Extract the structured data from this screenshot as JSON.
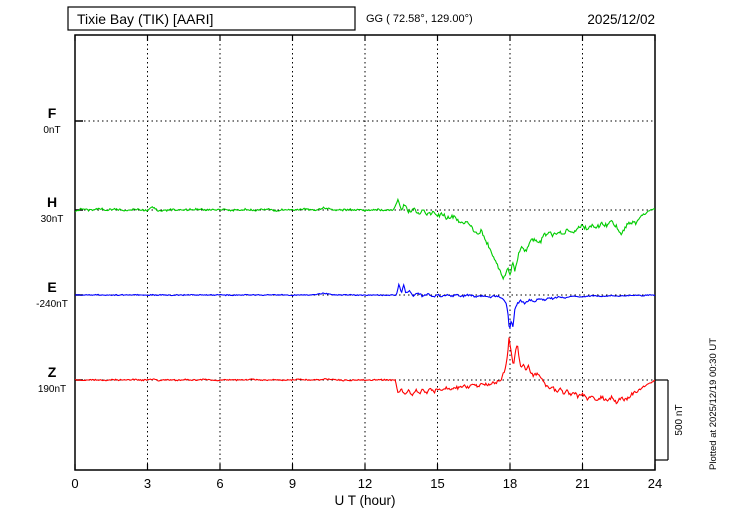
{
  "header": {
    "station_title": "Tixie Bay (TIK)  [AARI]",
    "coords": "GG ( 72.58°, 129.00°)",
    "date": "2025/12/02"
  },
  "footer": {
    "x_axis_label": "U T (hour)"
  },
  "scale_bar": {
    "label": "500 nT",
    "nT": 500
  },
  "watermark": "Plotted at 2025/12/19 00:30 UT",
  "chart_data": {
    "type": "line",
    "title": "Tixie Bay (TIK) [AARI] magnetogram 2025/12/02",
    "xlabel": "U T (hour)",
    "ylabel": "",
    "x_range": [
      0,
      24
    ],
    "x_ticks": [
      0,
      3,
      6,
      9,
      12,
      15,
      18,
      21,
      24
    ],
    "grid": "dotted",
    "legend_position": "left",
    "scale_bar_nT": 500,
    "sample_step": 0.04,
    "noise_seed": 12,
    "series": [
      {
        "id": "F",
        "label": "F",
        "base_label": "0nT",
        "base_value": 0,
        "color": "#FFA500",
        "noise_nT": 0,
        "storm_factor": 1,
        "storm_window": [
          0,
          0
        ],
        "points": []
      },
      {
        "id": "H",
        "label": "H",
        "base_label": "30nT",
        "base_value": 30,
        "color": "#00CC00",
        "noise_nT": 6,
        "storm_factor": 2.0,
        "storm_window": [
          13.3,
          23.2
        ],
        "points": [
          [
            0,
            22
          ],
          [
            0.3,
            38
          ],
          [
            0.6,
            28
          ],
          [
            1,
            42
          ],
          [
            1.3,
            30
          ],
          [
            1.6,
            36
          ],
          [
            2,
            29
          ],
          [
            2.5,
            35
          ],
          [
            3,
            27
          ],
          [
            3.2,
            45
          ],
          [
            3.5,
            23
          ],
          [
            4,
            32
          ],
          [
            4.5,
            29
          ],
          [
            5,
            36
          ],
          [
            5.5,
            30
          ],
          [
            6,
            33
          ],
          [
            6.5,
            28
          ],
          [
            7,
            34
          ],
          [
            7.5,
            29
          ],
          [
            8,
            36
          ],
          [
            8.3,
            26
          ],
          [
            8.6,
            34
          ],
          [
            9,
            30
          ],
          [
            9.5,
            35
          ],
          [
            10,
            29
          ],
          [
            10.3,
            45
          ],
          [
            10.6,
            34
          ],
          [
            11,
            29
          ],
          [
            11.5,
            33
          ],
          [
            12,
            28
          ],
          [
            12.5,
            33
          ],
          [
            13,
            28
          ],
          [
            13.2,
            34
          ],
          [
            13.35,
            95
          ],
          [
            13.5,
            24
          ],
          [
            13.65,
            70
          ],
          [
            13.8,
            14
          ],
          [
            14,
            36
          ],
          [
            14.2,
            6
          ],
          [
            14.4,
            26
          ],
          [
            14.6,
            0
          ],
          [
            14.8,
            16
          ],
          [
            15,
            -10
          ],
          [
            15.2,
            10
          ],
          [
            15.4,
            -24
          ],
          [
            15.6,
            -6
          ],
          [
            15.8,
            -30
          ],
          [
            16,
            -55
          ],
          [
            16.2,
            -36
          ],
          [
            16.4,
            -80
          ],
          [
            16.6,
            -120
          ],
          [
            16.8,
            -100
          ],
          [
            17,
            -160
          ],
          [
            17.2,
            -220
          ],
          [
            17.4,
            -285
          ],
          [
            17.6,
            -360
          ],
          [
            17.75,
            -400
          ],
          [
            17.9,
            -330
          ],
          [
            18,
            -380
          ],
          [
            18.1,
            -300
          ],
          [
            18.2,
            -345
          ],
          [
            18.35,
            -250
          ],
          [
            18.5,
            -190
          ],
          [
            18.65,
            -230
          ],
          [
            18.8,
            -170
          ],
          [
            19,
            -150
          ],
          [
            19.2,
            -185
          ],
          [
            19.4,
            -130
          ],
          [
            19.6,
            -110
          ],
          [
            19.8,
            -130
          ],
          [
            20,
            -100
          ],
          [
            20.2,
            -118
          ],
          [
            20.4,
            -90
          ],
          [
            20.6,
            -108
          ],
          [
            20.8,
            -80
          ],
          [
            21,
            -70
          ],
          [
            21.2,
            -92
          ],
          [
            21.4,
            -60
          ],
          [
            21.6,
            -78
          ],
          [
            21.8,
            -55
          ],
          [
            22,
            -68
          ],
          [
            22.2,
            -45
          ],
          [
            22.4,
            -72
          ],
          [
            22.6,
            -125
          ],
          [
            22.8,
            -70
          ],
          [
            23,
            -45
          ],
          [
            23.2,
            -55
          ],
          [
            23.4,
            -12
          ],
          [
            23.7,
            18
          ],
          [
            24,
            40
          ]
        ]
      },
      {
        "id": "E",
        "label": "E",
        "base_label": "-240nT",
        "base_value": -240,
        "color": "#0000FF",
        "noise_nT": 3,
        "storm_factor": 2.0,
        "storm_window": [
          13.3,
          20
        ],
        "points": [
          [
            0,
            -238
          ],
          [
            0.5,
            -240
          ],
          [
            1,
            -239
          ],
          [
            1.5,
            -241
          ],
          [
            2,
            -240
          ],
          [
            2.5,
            -239
          ],
          [
            3,
            -240
          ],
          [
            3.5,
            -240
          ],
          [
            4,
            -241
          ],
          [
            4.5,
            -240
          ],
          [
            5,
            -239
          ],
          [
            5.5,
            -240
          ],
          [
            6,
            -240
          ],
          [
            6.5,
            -241
          ],
          [
            7,
            -239
          ],
          [
            7.5,
            -240
          ],
          [
            8,
            -240
          ],
          [
            8.5,
            -239
          ],
          [
            9,
            -241
          ],
          [
            9.5,
            -240
          ],
          [
            10,
            -236
          ],
          [
            10.3,
            -229
          ],
          [
            10.6,
            -238
          ],
          [
            11,
            -240
          ],
          [
            11.5,
            -239
          ],
          [
            12,
            -241
          ],
          [
            12.5,
            -240
          ],
          [
            12.9,
            -243
          ],
          [
            13.1,
            -239
          ],
          [
            13.3,
            -242
          ],
          [
            13.4,
            -170
          ],
          [
            13.5,
            -226
          ],
          [
            13.6,
            -182
          ],
          [
            13.7,
            -230
          ],
          [
            13.85,
            -210
          ],
          [
            14,
            -246
          ],
          [
            14.2,
            -228
          ],
          [
            14.4,
            -250
          ],
          [
            14.6,
            -232
          ],
          [
            14.8,
            -252
          ],
          [
            15,
            -238
          ],
          [
            15.2,
            -252
          ],
          [
            15.4,
            -235
          ],
          [
            15.6,
            -248
          ],
          [
            15.8,
            -238
          ],
          [
            16,
            -248
          ],
          [
            16.3,
            -240
          ],
          [
            16.6,
            -250
          ],
          [
            16.9,
            -242
          ],
          [
            17.2,
            -252
          ],
          [
            17.5,
            -246
          ],
          [
            17.7,
            -258
          ],
          [
            17.85,
            -290
          ],
          [
            17.92,
            -360
          ],
          [
            17.98,
            -470
          ],
          [
            18.05,
            -400
          ],
          [
            18.12,
            -438
          ],
          [
            18.2,
            -330
          ],
          [
            18.3,
            -295
          ],
          [
            18.45,
            -276
          ],
          [
            18.6,
            -290
          ],
          [
            18.8,
            -270
          ],
          [
            19,
            -280
          ],
          [
            19.2,
            -262
          ],
          [
            19.4,
            -272
          ],
          [
            19.6,
            -256
          ],
          [
            19.8,
            -264
          ],
          [
            20,
            -252
          ],
          [
            20.3,
            -258
          ],
          [
            20.6,
            -248
          ],
          [
            21,
            -252
          ],
          [
            21.4,
            -244
          ],
          [
            21.8,
            -250
          ],
          [
            22.2,
            -243
          ],
          [
            22.6,
            -247
          ],
          [
            23,
            -241
          ],
          [
            23.4,
            -244
          ],
          [
            23.8,
            -240
          ],
          [
            24,
            -241
          ]
        ]
      },
      {
        "id": "Z",
        "label": "Z",
        "base_label": "190nT",
        "base_value": 190,
        "color": "#FF0000",
        "noise_nT": 4,
        "storm_factor": 2.5,
        "storm_window": [
          13.3,
          23.5
        ],
        "points": [
          [
            0,
            192
          ],
          [
            0.4,
            187
          ],
          [
            0.8,
            191
          ],
          [
            1.2,
            188
          ],
          [
            1.6,
            192
          ],
          [
            2,
            189
          ],
          [
            2.4,
            193
          ],
          [
            2.8,
            189
          ],
          [
            3.2,
            195
          ],
          [
            3.5,
            185
          ],
          [
            3.8,
            191
          ],
          [
            4.2,
            189
          ],
          [
            4.6,
            193
          ],
          [
            5,
            189
          ],
          [
            5.4,
            194
          ],
          [
            5.8,
            188
          ],
          [
            6.2,
            191
          ],
          [
            6.6,
            189
          ],
          [
            7,
            192
          ],
          [
            7.4,
            195
          ],
          [
            7.8,
            189
          ],
          [
            8.2,
            192
          ],
          [
            8.6,
            188
          ],
          [
            9,
            191
          ],
          [
            9.4,
            194
          ],
          [
            9.8,
            188
          ],
          [
            10.2,
            193
          ],
          [
            10.6,
            196
          ],
          [
            11,
            189
          ],
          [
            11.4,
            187
          ],
          [
            11.8,
            191
          ],
          [
            12.2,
            189
          ],
          [
            12.6,
            192
          ],
          [
            13,
            189
          ],
          [
            13.25,
            192
          ],
          [
            13.35,
            115
          ],
          [
            13.5,
            136
          ],
          [
            13.65,
            106
          ],
          [
            13.8,
            128
          ],
          [
            13.95,
            100
          ],
          [
            14.1,
            126
          ],
          [
            14.25,
            108
          ],
          [
            14.4,
            132
          ],
          [
            14.55,
            112
          ],
          [
            14.7,
            138
          ],
          [
            14.85,
            115
          ],
          [
            15,
            135
          ],
          [
            15.15,
            120
          ],
          [
            15.3,
            142
          ],
          [
            15.5,
            128
          ],
          [
            15.7,
            148
          ],
          [
            15.9,
            138
          ],
          [
            16.1,
            155
          ],
          [
            16.3,
            145
          ],
          [
            16.5,
            160
          ],
          [
            16.7,
            152
          ],
          [
            16.9,
            165
          ],
          [
            17.1,
            158
          ],
          [
            17.3,
            172
          ],
          [
            17.5,
            180
          ],
          [
            17.65,
            200
          ],
          [
            17.8,
            262
          ],
          [
            17.9,
            345
          ],
          [
            17.96,
            460
          ],
          [
            18.02,
            392
          ],
          [
            18.08,
            330
          ],
          [
            18.15,
            282
          ],
          [
            18.22,
            362
          ],
          [
            18.3,
            420
          ],
          [
            18.38,
            312
          ],
          [
            18.45,
            262
          ],
          [
            18.55,
            300
          ],
          [
            18.65,
            252
          ],
          [
            18.75,
            286
          ],
          [
            18.85,
            236
          ],
          [
            19,
            216
          ],
          [
            19.15,
            236
          ],
          [
            19.3,
            196
          ],
          [
            19.45,
            162
          ],
          [
            19.6,
            136
          ],
          [
            19.75,
            156
          ],
          [
            19.9,
            116
          ],
          [
            20.05,
            136
          ],
          [
            20.2,
            106
          ],
          [
            20.35,
            126
          ],
          [
            20.5,
            96
          ],
          [
            20.65,
            116
          ],
          [
            20.8,
            86
          ],
          [
            21,
            106
          ],
          [
            21.2,
            72
          ],
          [
            21.4,
            96
          ],
          [
            21.6,
            62
          ],
          [
            21.8,
            86
          ],
          [
            22,
            56
          ],
          [
            22.2,
            80
          ],
          [
            22.4,
            50
          ],
          [
            22.6,
            76
          ],
          [
            22.8,
            66
          ],
          [
            23,
            96
          ],
          [
            23.2,
            116
          ],
          [
            23.4,
            136
          ],
          [
            23.6,
            156
          ],
          [
            23.8,
            172
          ],
          [
            24,
            186
          ]
        ]
      }
    ]
  }
}
